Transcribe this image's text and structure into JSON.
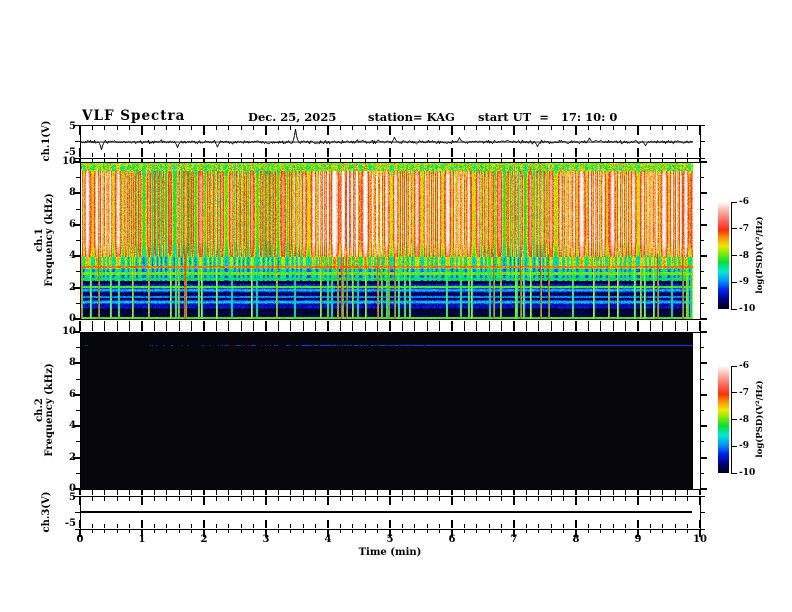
{
  "header": {
    "title": "VLF Spectra",
    "date": "Dec. 25, 2025",
    "station": "station= KAG",
    "start_ut": "start UT  =   17: 10: 0"
  },
  "axes": {
    "time": {
      "label": "Time (min)",
      "min": 0,
      "max": 10,
      "major_ticks": [
        "0",
        "1",
        "2",
        "3",
        "4",
        "5",
        "6",
        "7",
        "8",
        "9",
        "10"
      ],
      "minor_step_min": 0.2
    },
    "ch1_voltage": {
      "label": "ch.1(V)",
      "ticks": [
        "5",
        "-5"
      ],
      "range_V": [
        -5,
        5
      ]
    },
    "ch1_freq": {
      "label_line1": "ch.1",
      "label_line2": "Frequency (kHz)",
      "ticks": [
        "10",
        "8",
        "6",
        "4",
        "2",
        "0"
      ],
      "range_kHz": [
        0,
        10
      ]
    },
    "ch2_freq": {
      "label_line1": "ch.2",
      "label_line2": "Frequency (kHz)",
      "ticks": [
        "10",
        "8",
        "6",
        "4",
        "2",
        "0"
      ],
      "range_kHz": [
        0,
        10
      ]
    },
    "ch3_voltage": {
      "label": "ch.3(V)",
      "ticks": [
        "5",
        "-5"
      ],
      "range_V": [
        -5,
        5
      ]
    }
  },
  "colorbar": {
    "label": "log(PSD)(V²/Hz)",
    "ticks": [
      "-6",
      "-7",
      "-8",
      "-9",
      "-10"
    ],
    "range": [
      -10,
      -6
    ],
    "gradient": [
      {
        "v": -6.0,
        "c": "#ffffff"
      },
      {
        "v": -6.35,
        "c": "#ffafa5"
      },
      {
        "v": -6.7,
        "c": "#ff695f"
      },
      {
        "v": -7.05,
        "c": "#ff2d0a"
      },
      {
        "v": -7.35,
        "c": "#ff9600"
      },
      {
        "v": -7.65,
        "c": "#ebeb00"
      },
      {
        "v": -7.95,
        "c": "#78eb00"
      },
      {
        "v": -8.25,
        "c": "#00e13c"
      },
      {
        "v": -8.6,
        "c": "#00ebd2"
      },
      {
        "v": -8.95,
        "c": "#0096ff"
      },
      {
        "v": -9.3,
        "c": "#001ef0"
      },
      {
        "v": -9.65,
        "c": "#000082"
      },
      {
        "v": -10.0,
        "c": "#020210"
      }
    ]
  },
  "chart_data": [
    {
      "id": "ch1_waveform",
      "type": "line",
      "channel": "ch.1",
      "units": "V",
      "x_range_min": [
        0,
        10
      ],
      "y_range": [
        -5,
        5
      ],
      "data_end_min": 9.87,
      "baseline_V": 0,
      "noise_sigma_V": 0.3,
      "seed": 1234,
      "spikes": [
        {
          "t_min": 0.33,
          "amp_V": -2.6
        },
        {
          "t_min": 1.55,
          "amp_V": -1.9
        },
        {
          "t_min": 2.2,
          "amp_V": -1.7
        },
        {
          "t_min": 3.45,
          "amp_V": 4.3
        },
        {
          "t_min": 5.05,
          "amp_V": 1.6
        },
        {
          "t_min": 6.1,
          "amp_V": 1.5
        },
        {
          "t_min": 7.35,
          "amp_V": -1.6
        },
        {
          "t_min": 8.2,
          "amp_V": 1.4
        },
        {
          "t_min": 9.1,
          "amp_V": -1.3
        }
      ]
    },
    {
      "id": "ch1_spectrogram",
      "type": "heatmap",
      "channel": "ch.1",
      "x_range_min": [
        0,
        10
      ],
      "y_range_kHz": [
        0,
        10
      ],
      "value_scale": "log(PSD)(V²/Hz)",
      "value_range": [
        -10,
        -6
      ],
      "data_end_min": 9.87,
      "seed": 77,
      "bands": [
        {
          "f_kHz": [
            9.55,
            10.0
          ],
          "base": -8.0,
          "noise": 1.0,
          "striation": 0.35,
          "env": 0.0
        },
        {
          "f_kHz": [
            4.0,
            9.55
          ],
          "base": -7.1,
          "noise": 0.4,
          "striation": 0.85,
          "env": 0.65
        },
        {
          "f_kHz": [
            3.25,
            4.0
          ],
          "base": -8.2,
          "noise": 0.4,
          "striation": 0.65,
          "env": 0.35
        },
        {
          "f_kHz": [
            2.5,
            3.25
          ],
          "base": -8.75,
          "noise": 0.45,
          "striation": 0.45,
          "env": 0.0
        },
        {
          "f_kHz": [
            0.55,
            2.5
          ],
          "base": -9.45,
          "noise": 0.45,
          "striation": 0.0,
          "env": 0.0,
          "row_stripes": true
        },
        {
          "f_kHz": [
            0.0,
            0.55
          ],
          "base": -9.85,
          "noise": 0.25,
          "striation": 0.0,
          "env": 0.0
        }
      ],
      "horizontal_lines": [
        {
          "f_kHz": 9.95,
          "logpsd": -8.0
        },
        {
          "f_kHz": 3.35,
          "logpsd": -7.25
        },
        {
          "f_kHz": 2.95,
          "logpsd": -8.0
        },
        {
          "f_kHz": 2.6,
          "logpsd": -8.35
        },
        {
          "f_kHz": 2.1,
          "logpsd": -8.05
        },
        {
          "f_kHz": 1.45,
          "logpsd": -9.0
        },
        {
          "f_kHz": 0.12,
          "logpsd": -8.1
        }
      ],
      "vertical_sferics": {
        "count": 70,
        "min_logpsd": -8.6,
        "max_logpsd": -7.0
      }
    },
    {
      "id": "ch2_spectrogram",
      "type": "heatmap",
      "channel": "ch.2",
      "x_range_min": [
        0,
        10
      ],
      "y_range_kHz": [
        0,
        10
      ],
      "value_scale": "log(PSD)(V²/Hz)",
      "value_range": [
        -10,
        -6
      ],
      "background_logpsd": -10,
      "data_end_min": 9.87,
      "seed": 99,
      "narrowband_line": {
        "f_kHz": 9.25,
        "logpsd": -9.2,
        "start_min": 1.1,
        "solid_after_min": 6.0
      }
    },
    {
      "id": "ch3_waveform",
      "type": "line",
      "channel": "ch.3",
      "units": "V",
      "x_range_min": [
        0,
        10
      ],
      "y_range": [
        -5,
        5
      ],
      "constant_V": 0,
      "data_end_min": 9.87
    }
  ]
}
